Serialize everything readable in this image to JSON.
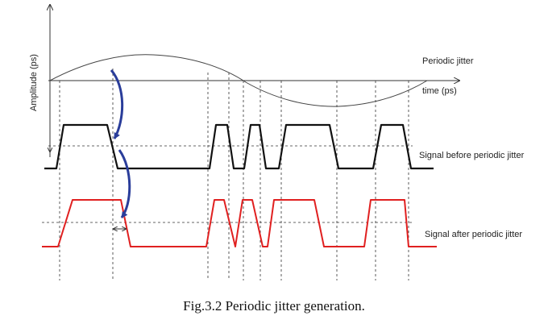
{
  "figure": {
    "caption": "Fig.3.2  Periodic jitter generation.",
    "y_axis_label": "Amplitude (ps)",
    "x_axis_label": "time (ps)",
    "labels": {
      "periodic_jitter": "Periodic jitter",
      "signal_before": "Signal before periodic jitter",
      "signal_after": "Signal after periodic jitter"
    },
    "colors": {
      "axes": "#333333",
      "sine": "#444444",
      "signal_before": "#111111",
      "signal_after": "#e02020",
      "arrows": "#2a3d9a",
      "guides": "#333333"
    }
  }
}
